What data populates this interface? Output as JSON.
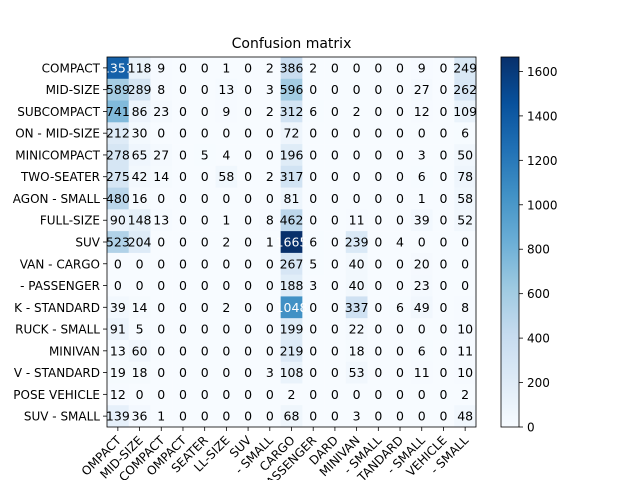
{
  "chart_data": {
    "type": "heatmap",
    "title": "Confusion matrix",
    "xlabel": "",
    "ylabel": "",
    "colormap": "Blues",
    "color_range": [
      0,
      1665
    ],
    "colorbar_ticks": [
      0,
      200,
      400,
      600,
      800,
      1000,
      1200,
      1400,
      1600
    ],
    "row_labels": [
      "COMPACT",
      "MID-SIZE",
      "SUBCOMPACT",
      "ON - MID-SIZE",
      "MINICOMPACT",
      "TWO-SEATER",
      "AGON - SMALL",
      "FULL-SIZE",
      "SUV",
      "VAN - CARGO",
      "- PASSENGER",
      "K - STANDARD",
      "RUCK - SMALL",
      "MINIVAN",
      "V - STANDARD",
      "POSE VEHICLE",
      "SUV - SMALL"
    ],
    "col_labels": [
      "OMPACT",
      "MID-SIZE",
      "COMPACT",
      "OMPACT",
      "SEATER",
      "LL-SIZE",
      "SUV",
      "- SMALL",
      "CARGO",
      "ASSENGER",
      "DARD",
      "MINIVAN",
      "- SMALL",
      "TANDARD",
      "- SMALL",
      "VEHICLE",
      "- SMALL"
    ],
    "matrix": [
      [
        1351,
        118,
        9,
        0,
        0,
        1,
        0,
        2,
        386,
        2,
        0,
        0,
        0,
        0,
        9,
        0,
        249
      ],
      [
        589,
        289,
        8,
        0,
        0,
        13,
        0,
        3,
        596,
        0,
        0,
        0,
        0,
        0,
        27,
        0,
        262
      ],
      [
        741,
        86,
        23,
        0,
        0,
        9,
        0,
        2,
        312,
        6,
        0,
        2,
        0,
        0,
        12,
        0,
        109
      ],
      [
        212,
        30,
        0,
        0,
        0,
        0,
        0,
        0,
        72,
        0,
        0,
        0,
        0,
        0,
        0,
        0,
        6
      ],
      [
        278,
        65,
        27,
        0,
        5,
        4,
        0,
        0,
        196,
        0,
        0,
        0,
        0,
        0,
        3,
        0,
        50
      ],
      [
        275,
        42,
        14,
        0,
        0,
        58,
        0,
        2,
        317,
        0,
        0,
        0,
        0,
        0,
        6,
        0,
        78
      ],
      [
        480,
        16,
        0,
        0,
        0,
        0,
        0,
        0,
        81,
        0,
        0,
        0,
        0,
        0,
        1,
        0,
        58
      ],
      [
        90,
        148,
        13,
        0,
        0,
        1,
        0,
        8,
        462,
        0,
        0,
        11,
        0,
        0,
        39,
        0,
        52
      ],
      [
        523,
        204,
        0,
        0,
        0,
        2,
        0,
        1,
        1665,
        6,
        0,
        239,
        0,
        4,
        0,
        0,
        0
      ],
      [
        0,
        0,
        0,
        0,
        0,
        0,
        0,
        0,
        267,
        5,
        0,
        40,
        0,
        0,
        20,
        0,
        0
      ],
      [
        0,
        0,
        0,
        0,
        0,
        0,
        0,
        0,
        188,
        3,
        0,
        40,
        0,
        0,
        23,
        0,
        0
      ],
      [
        39,
        14,
        0,
        0,
        0,
        2,
        0,
        0,
        1048,
        0,
        0,
        337,
        0,
        6,
        49,
        0,
        8
      ],
      [
        91,
        5,
        0,
        0,
        0,
        0,
        0,
        0,
        199,
        0,
        0,
        22,
        0,
        0,
        0,
        0,
        10
      ],
      [
        13,
        60,
        0,
        0,
        0,
        0,
        0,
        0,
        219,
        0,
        0,
        18,
        0,
        0,
        6,
        0,
        11
      ],
      [
        19,
        18,
        0,
        0,
        0,
        0,
        0,
        3,
        108,
        0,
        0,
        53,
        0,
        0,
        11,
        0,
        10
      ],
      [
        12,
        0,
        0,
        0,
        0,
        0,
        0,
        0,
        2,
        0,
        0,
        0,
        0,
        0,
        0,
        0,
        2
      ],
      [
        139,
        36,
        1,
        0,
        0,
        0,
        0,
        0,
        68,
        0,
        0,
        3,
        0,
        0,
        0,
        0,
        48
      ]
    ]
  }
}
